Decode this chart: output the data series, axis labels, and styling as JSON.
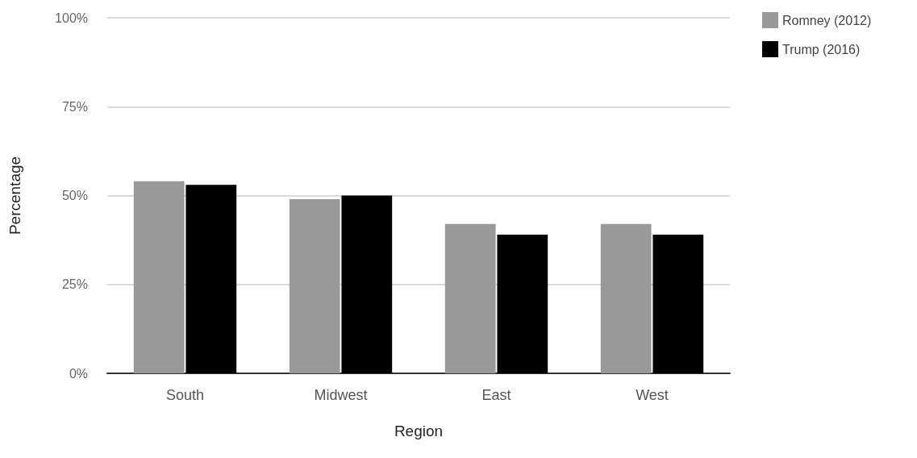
{
  "chart_data": {
    "type": "bar",
    "xlabel": "Region",
    "ylabel": "Percentage",
    "categories": [
      "South",
      "Midwest",
      "East",
      "West"
    ],
    "series": [
      {
        "name": "Romney (2012)",
        "color": "#999999",
        "values": [
          54,
          49,
          42,
          42
        ]
      },
      {
        "name": "Trump (2016)",
        "color": "#000000",
        "values": [
          53,
          50,
          39,
          39
        ]
      }
    ],
    "ylim": [
      0,
      100
    ],
    "yticks": [
      {
        "value": 0,
        "label": "0%"
      },
      {
        "value": 25,
        "label": "25%"
      },
      {
        "value": 50,
        "label": "50%"
      },
      {
        "value": 75,
        "label": "75%"
      },
      {
        "value": 100,
        "label": "100%"
      }
    ],
    "grid": "y",
    "legend": "top right"
  }
}
